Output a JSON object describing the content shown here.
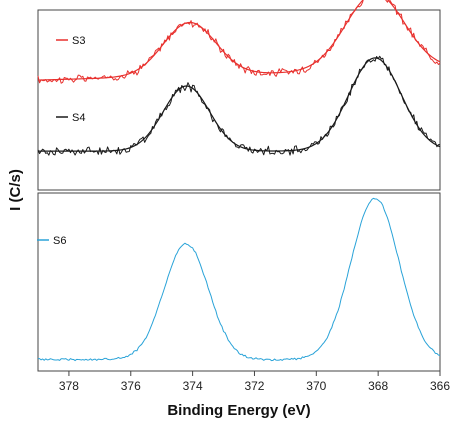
{
  "chart_data": {
    "type": "line",
    "xlabel": "Binding Energy (eV)",
    "ylabel": "I (C/s)",
    "x_reversed": true,
    "xlim": [
      379,
      366
    ],
    "x_ticks": [
      {
        "value": 378,
        "label": "378"
      },
      {
        "value": 376,
        "label": "376"
      },
      {
        "value": 374,
        "label": "374"
      },
      {
        "value": 372,
        "label": "372"
      },
      {
        "value": 370,
        "label": "370"
      },
      {
        "value": 368,
        "label": "368"
      },
      {
        "value": 366,
        "label": "366"
      }
    ],
    "grid": false,
    "legend_placement": "top-left",
    "panels": [
      {
        "name": "upper",
        "ylim": [
          0,
          1
        ],
        "series": [
          {
            "name": "S3",
            "color": "#e8312e",
            "peaks": [
              {
                "center": 374.1,
                "sigma": 0.85,
                "height": 0.36
              },
              {
                "center": 368.1,
                "sigma": 0.95,
                "height": 0.52
              }
            ],
            "baseline": 0.54,
            "baseline_slope": 0.006,
            "noise": 0.035
          },
          {
            "name": "S4",
            "color": "#1a1a1a",
            "peaks": [
              {
                "center": 374.2,
                "sigma": 0.75,
                "height": 0.44
              },
              {
                "center": 368.1,
                "sigma": 0.85,
                "height": 0.63
              }
            ],
            "baseline": 0.06,
            "baseline_slope": 0.0,
            "noise": 0.035
          }
        ]
      },
      {
        "name": "lower",
        "ylim": [
          0,
          1
        ],
        "series": [
          {
            "name": "S6",
            "color": "#2aa3d8",
            "peaks": [
              {
                "center": 374.2,
                "sigma": 0.72,
                "height": 0.69
              },
              {
                "center": 368.1,
                "sigma": 0.78,
                "height": 0.96
              }
            ],
            "baseline": 0.05,
            "baseline_slope": 0.0,
            "noise": 0.008
          }
        ]
      }
    ]
  }
}
